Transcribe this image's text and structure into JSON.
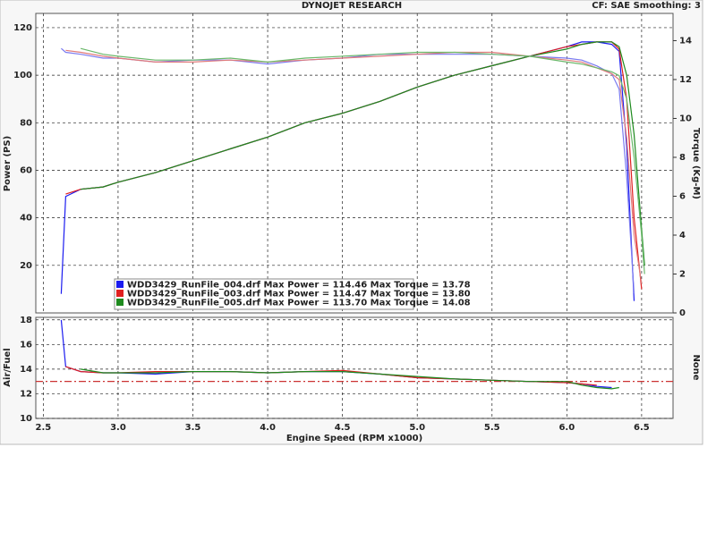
{
  "chart_data": [
    {
      "type": "line",
      "title": "DYNOJET RESEARCH",
      "subtitle": "CF: SAE  Smoothing: 3",
      "ylabel": "Power (PS)",
      "y2label": "Torque (Kg-M)",
      "grid": true,
      "legend": "lower left",
      "x": [
        2.62,
        2.65,
        2.75,
        2.9,
        3.0,
        3.25,
        3.5,
        3.75,
        4.0,
        4.25,
        4.5,
        4.75,
        5.0,
        5.25,
        5.5,
        5.75,
        6.0,
        6.1,
        6.2,
        6.3,
        6.35,
        6.4,
        6.45,
        6.5,
        6.52
      ],
      "xlim": [
        2.45,
        6.71
      ],
      "xticks": [
        2.5,
        {
          "value": 3,
          "label": "3.0"
        },
        3.5,
        {
          "value": 4,
          "label": "4.0"
        },
        4.5,
        {
          "value": 5,
          "label": "5.0"
        },
        5.5,
        {
          "value": 6,
          "label": "6.0"
        },
        6.5
      ],
      "ylim": [
        0,
        126
      ],
      "yticks": [
        20,
        40,
        60,
        80,
        100,
        120
      ],
      "y2lim": [
        0,
        15.4
      ],
      "y2ticks": [
        0,
        2,
        4,
        6,
        8,
        10,
        12,
        14
      ],
      "series": [
        {
          "name": "WDD3429_RunFile_004.drf Max Power = 114.46 Max Torque = 13.78",
          "color": "#1c1cf0",
          "values": [
            8,
            49,
            52,
            53,
            55,
            59,
            64,
            69,
            74,
            80,
            84,
            89,
            95,
            100,
            104,
            108,
            112,
            114,
            114,
            113,
            110,
            70,
            5,
            null,
            null
          ]
        },
        {
          "name": "WDD3429_RunFile_003.drf Max Power = 114.47 Max Torque = 13.80",
          "color": "#e02020",
          "values": [
            null,
            50,
            52,
            53,
            55,
            59,
            64,
            69,
            74,
            80,
            84,
            89,
            95,
            100,
            104,
            108,
            112,
            113,
            114,
            114,
            111,
            90,
            40,
            10,
            null
          ]
        },
        {
          "name": "WDD3429_RunFile_005.drf Max Power = 113.70 Max Torque = 14.08",
          "color": "#1e8a1e",
          "values": [
            null,
            null,
            52,
            53,
            55,
            59,
            64,
            69,
            74,
            80,
            84,
            89,
            95,
            100,
            104,
            108,
            111,
            113,
            114,
            114,
            112,
            100,
            75,
            35,
            20
          ]
        },
        {
          "color": "#7a7af0",
          "axis": "y2",
          "values": [
            13.6,
            13.4,
            13.3,
            13.1,
            13.1,
            12.9,
            13.0,
            13.0,
            12.8,
            13.0,
            13.1,
            13.3,
            13.3,
            13.3,
            13.3,
            13.2,
            13.1,
            13.0,
            12.7,
            12.3,
            11.5,
            7,
            1,
            null,
            null
          ]
        },
        {
          "color": "#e07a7a",
          "axis": "y2",
          "values": [
            null,
            13.5,
            13.4,
            13.2,
            13.1,
            12.9,
            12.9,
            13.0,
            12.9,
            13.0,
            13.1,
            13.2,
            13.3,
            13.4,
            13.4,
            13.2,
            13.0,
            12.9,
            12.6,
            12.3,
            12.0,
            9,
            4,
            1.5,
            null
          ]
        },
        {
          "color": "#6ab86a",
          "axis": "y2",
          "values": [
            null,
            null,
            13.6,
            13.3,
            13.2,
            13.0,
            13.0,
            13.1,
            12.9,
            13.1,
            13.2,
            13.3,
            13.4,
            13.4,
            13.3,
            13.2,
            12.9,
            12.8,
            12.6,
            12.4,
            12.2,
            11,
            8,
            4,
            2
          ]
        }
      ]
    },
    {
      "type": "line",
      "xlabel": "Engine Speed (RPM x1000)",
      "ylabel": "Air/Fuel",
      "y2label": "None",
      "grid": true,
      "ylim": [
        10,
        18.2
      ],
      "yticks": [
        10,
        12,
        14,
        16,
        18
      ],
      "reference_line": {
        "value": 13,
        "color": "#cc3333"
      },
      "series": [
        {
          "color": "#1c1cf0",
          "values": [
            18,
            14.2,
            13.8,
            13.7,
            13.7,
            13.6,
            13.8,
            13.8,
            13.7,
            13.8,
            13.8,
            13.6,
            13.3,
            13.2,
            13.1,
            13.0,
            12.9,
            12.8,
            12.6,
            12.5,
            null,
            null,
            null,
            null,
            null
          ]
        },
        {
          "color": "#e02020",
          "values": [
            null,
            14.2,
            13.8,
            13.7,
            13.7,
            13.8,
            13.8,
            13.8,
            13.7,
            13.8,
            13.9,
            13.6,
            13.3,
            13.2,
            13.1,
            13.0,
            12.9,
            12.8,
            12.7,
            null,
            null,
            null,
            null,
            null,
            null
          ]
        },
        {
          "color": "#1e8a1e",
          "values": [
            null,
            null,
            14.0,
            13.7,
            13.7,
            13.7,
            13.8,
            13.8,
            13.7,
            13.8,
            13.8,
            13.6,
            13.4,
            13.2,
            13.1,
            13.0,
            13.0,
            12.7,
            12.5,
            12.4,
            12.5,
            null,
            null,
            null,
            null
          ]
        }
      ]
    }
  ]
}
